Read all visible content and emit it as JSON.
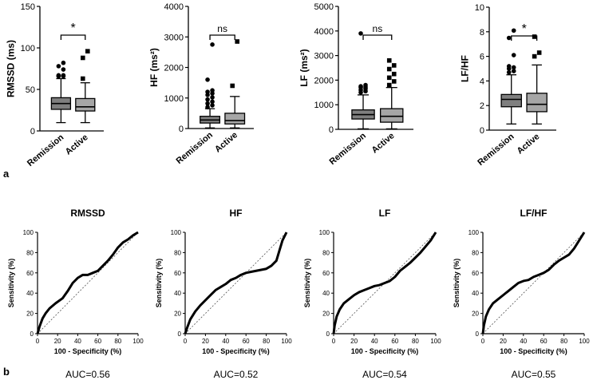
{
  "panel_labels": {
    "a": "a",
    "b": "b"
  },
  "chart_data": [
    {
      "type": "boxplot",
      "id": "rmssd",
      "ylabel": "RMSSD (ms)",
      "ylim": [
        0,
        150
      ],
      "yticks": [
        "0",
        "50",
        "100",
        "150"
      ],
      "categories": [
        "Remission",
        "Active"
      ],
      "significance": "*",
      "boxes": [
        {
          "name": "Remission",
          "fill": "#7f7f7f",
          "marker": "circle",
          "whisker_low": 10,
          "q1": 26,
          "median": 33,
          "q3": 40,
          "whisker_high": 63,
          "outliers": [
            66,
            66,
            66,
            67,
            67,
            74,
            78,
            82
          ]
        },
        {
          "name": "Active",
          "fill": "#a6a6a6",
          "marker": "square",
          "whisker_low": 10,
          "q1": 24,
          "median": 29,
          "q3": 39,
          "whisker_high": 58,
          "outliers": [
            63,
            96,
            88
          ]
        }
      ]
    },
    {
      "type": "boxplot",
      "id": "hf",
      "ylabel": "HF (ms²)",
      "ylim": [
        0,
        4000
      ],
      "yticks": [
        "0",
        "1000",
        "2000",
        "3000",
        "4000"
      ],
      "categories": [
        "Remission",
        "Active"
      ],
      "significance": "ns",
      "boxes": [
        {
          "name": "Remission",
          "fill": "#7f7f7f",
          "marker": "circle",
          "whisker_low": 20,
          "q1": 180,
          "median": 280,
          "q3": 400,
          "whisker_high": 650,
          "outliers": [
            700,
            760,
            820,
            880,
            950,
            1020,
            1100,
            1150,
            1200,
            1250,
            1600,
            2750
          ]
        },
        {
          "name": "Active",
          "fill": "#a6a6a6",
          "marker": "square",
          "whisker_low": 20,
          "q1": 150,
          "median": 260,
          "q3": 500,
          "whisker_high": 1050,
          "outliers": [
            1400,
            2850
          ]
        }
      ]
    },
    {
      "type": "boxplot",
      "id": "lf",
      "ylabel": "LF (ms²)",
      "ylim": [
        0,
        5000
      ],
      "yticks": [
        "0",
        "1000",
        "2000",
        "3000",
        "4000",
        "5000"
      ],
      "categories": [
        "Remission",
        "Active"
      ],
      "significance": "ns",
      "boxes": [
        {
          "name": "Remission",
          "fill": "#7f7f7f",
          "marker": "circle",
          "whisker_low": 20,
          "q1": 420,
          "median": 600,
          "q3": 790,
          "whisker_high": 1400,
          "outliers": [
            1500,
            1550,
            1600,
            1650,
            1700,
            1720,
            1750,
            1800,
            3900
          ]
        },
        {
          "name": "Active",
          "fill": "#a6a6a6",
          "marker": "square",
          "whisker_low": 20,
          "q1": 290,
          "median": 530,
          "q3": 840,
          "whisker_high": 1700,
          "outliers": [
            1800,
            1950,
            2100,
            2250,
            2450,
            2600,
            2800
          ]
        }
      ]
    },
    {
      "type": "boxplot",
      "id": "lfhf",
      "ylabel": "LF/HF",
      "ylim": [
        0,
        10
      ],
      "yticks": [
        "0",
        "2",
        "4",
        "6",
        "8",
        "10"
      ],
      "categories": [
        "Remission",
        "Active"
      ],
      "significance": "*",
      "boxes": [
        {
          "name": "Remission",
          "fill": "#7f7f7f",
          "marker": "circle",
          "whisker_low": 0.5,
          "q1": 1.9,
          "median": 2.5,
          "q3": 2.9,
          "whisker_high": 4.5,
          "outliers": [
            4.7,
            4.8,
            5.0,
            5.1,
            5.2,
            6.1,
            7.5,
            8.1
          ]
        },
        {
          "name": "Active",
          "fill": "#a6a6a6",
          "marker": "square",
          "whisker_low": 0.5,
          "q1": 1.5,
          "median": 2.1,
          "q3": 3.0,
          "whisker_high": 5.3,
          "outliers": [
            6.0,
            6.3,
            7.6
          ]
        }
      ]
    },
    {
      "type": "line",
      "id": "roc-rmssd",
      "title": "RMSSD",
      "xlabel": "100 - Specificity (%)",
      "ylabel": "Sensitivity (%)",
      "xlim": [
        0,
        100
      ],
      "ylim": [
        0,
        100
      ],
      "ticks": [
        "0",
        "20",
        "40",
        "60",
        "80",
        "100"
      ],
      "auc": "AUC=0.56",
      "x": [
        0,
        2,
        5,
        8,
        12,
        18,
        25,
        30,
        35,
        40,
        45,
        50,
        55,
        60,
        65,
        70,
        75,
        80,
        85,
        90,
        95,
        100
      ],
      "y": [
        0,
        7,
        15,
        20,
        25,
        30,
        35,
        42,
        50,
        55,
        58,
        58,
        60,
        62,
        67,
        72,
        78,
        85,
        90,
        93,
        97,
        100
      ]
    },
    {
      "type": "line",
      "id": "roc-hf",
      "title": "HF",
      "xlabel": "100 - Specificity (%)",
      "ylabel": "Sensitivity (%)",
      "xlim": [
        0,
        100
      ],
      "ylim": [
        0,
        100
      ],
      "ticks": [
        "0",
        "20",
        "40",
        "60",
        "80",
        "100"
      ],
      "auc": "AUC=0.52",
      "x": [
        0,
        2,
        5,
        10,
        15,
        20,
        25,
        30,
        35,
        40,
        45,
        50,
        55,
        60,
        65,
        70,
        75,
        80,
        85,
        90,
        93,
        96,
        100
      ],
      "y": [
        0,
        6,
        14,
        22,
        28,
        33,
        38,
        43,
        46,
        49,
        53,
        55,
        58,
        60,
        61,
        62,
        63,
        64,
        67,
        72,
        82,
        92,
        100
      ]
    },
    {
      "type": "line",
      "id": "roc-lf",
      "title": "LF",
      "xlabel": "100 - Specificity (%)",
      "ylabel": "Sensitivity (%)",
      "xlim": [
        0,
        100
      ],
      "ylim": [
        0,
        100
      ],
      "ticks": [
        "0",
        "20",
        "40",
        "60",
        "80",
        "100"
      ],
      "auc": "AUC=0.54",
      "x": [
        0,
        1,
        3,
        6,
        10,
        15,
        20,
        25,
        30,
        35,
        40,
        45,
        50,
        55,
        60,
        65,
        70,
        75,
        80,
        85,
        90,
        95,
        100
      ],
      "y": [
        0,
        8,
        17,
        24,
        30,
        34,
        38,
        41,
        43,
        45,
        47,
        48,
        50,
        52,
        56,
        62,
        66,
        70,
        75,
        80,
        86,
        92,
        100
      ]
    },
    {
      "type": "line",
      "id": "roc-lfhf",
      "title": "LF/HF",
      "xlabel": "100 - Specificity (%)",
      "ylabel": "Sensitivity (%)",
      "xlim": [
        0,
        100
      ],
      "ylim": [
        0,
        100
      ],
      "ticks": [
        "0",
        "20",
        "40",
        "60",
        "80",
        "100"
      ],
      "auc": "AUC=0.55",
      "x": [
        0,
        1,
        3,
        6,
        10,
        15,
        20,
        25,
        30,
        35,
        40,
        45,
        50,
        55,
        60,
        65,
        70,
        75,
        80,
        85,
        90,
        95,
        100
      ],
      "y": [
        0,
        8,
        17,
        24,
        30,
        34,
        38,
        42,
        46,
        50,
        52,
        53,
        56,
        58,
        60,
        63,
        68,
        72,
        75,
        78,
        84,
        92,
        100
      ]
    }
  ]
}
